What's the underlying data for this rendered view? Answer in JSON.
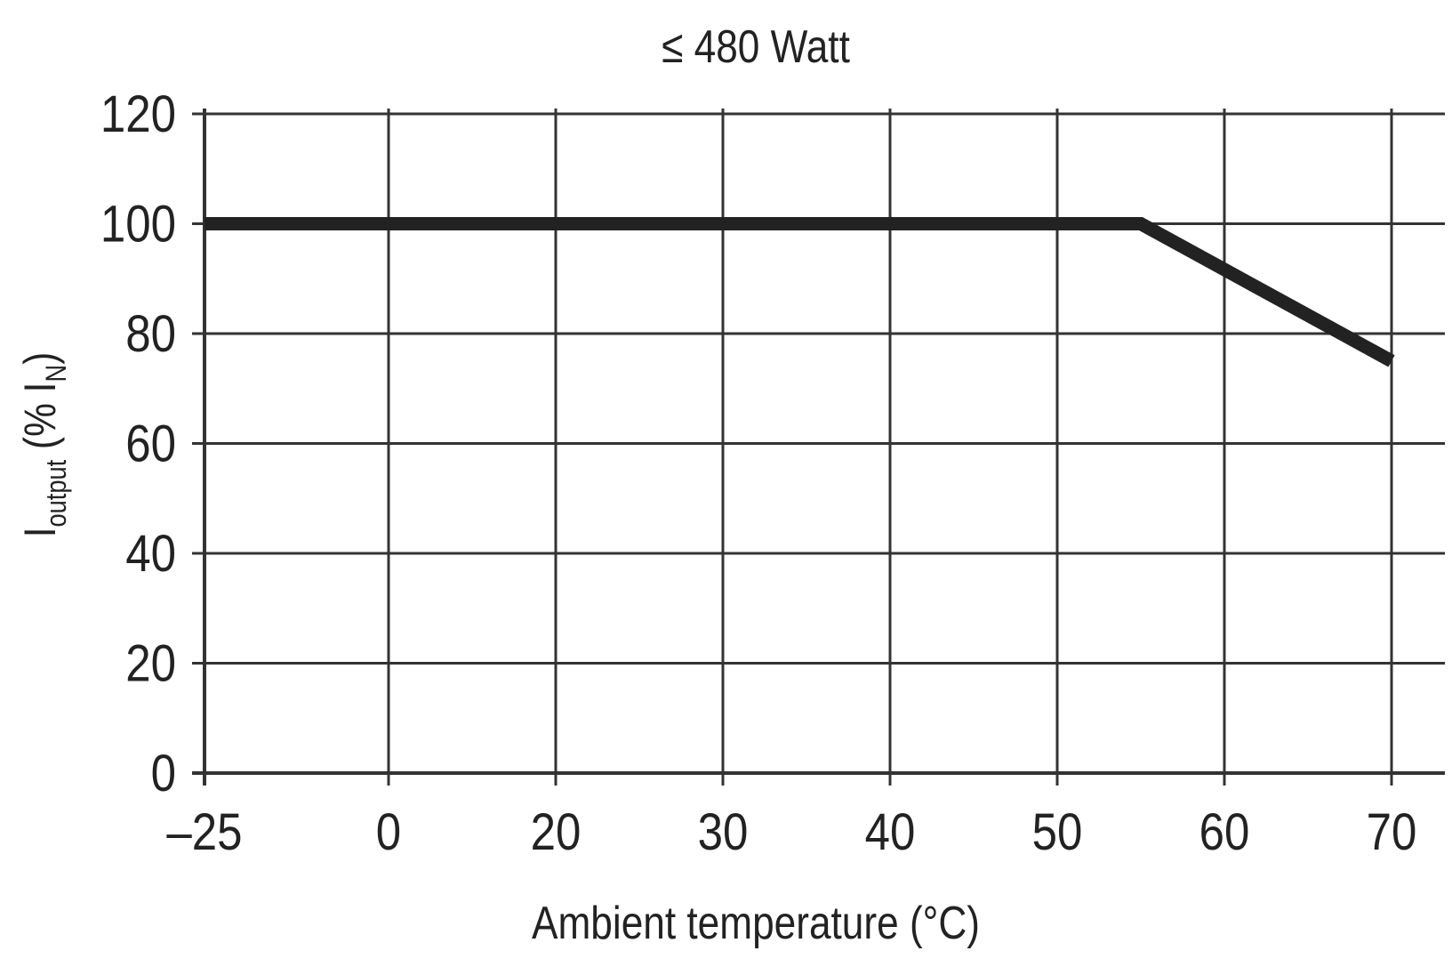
{
  "chart_data": {
    "type": "line",
    "title": "≤ 480 Watt",
    "xlabel": "Ambient temperature (°C)",
    "ylabel": {
      "main": "I",
      "sub": "output",
      "rest": " (% I",
      "sub2": "N",
      "close": ")"
    },
    "x_ticks": [
      -25,
      0,
      20,
      30,
      40,
      50,
      60,
      70
    ],
    "x_tick_labels": [
      "–25",
      "0",
      "20",
      "30",
      "40",
      "50",
      "60",
      "70"
    ],
    "y_ticks": [
      0,
      20,
      40,
      60,
      80,
      100,
      120
    ],
    "y_tick_labels": [
      "0",
      "20",
      "40",
      "60",
      "80",
      "100",
      "120"
    ],
    "ylim": [
      0,
      120
    ],
    "xlim": [
      -25,
      70
    ],
    "grid": true,
    "series": [
      {
        "x": [
          -25,
          55,
          70
        ],
        "y": [
          100,
          100,
          75
        ],
        "color": "#222222"
      }
    ]
  }
}
